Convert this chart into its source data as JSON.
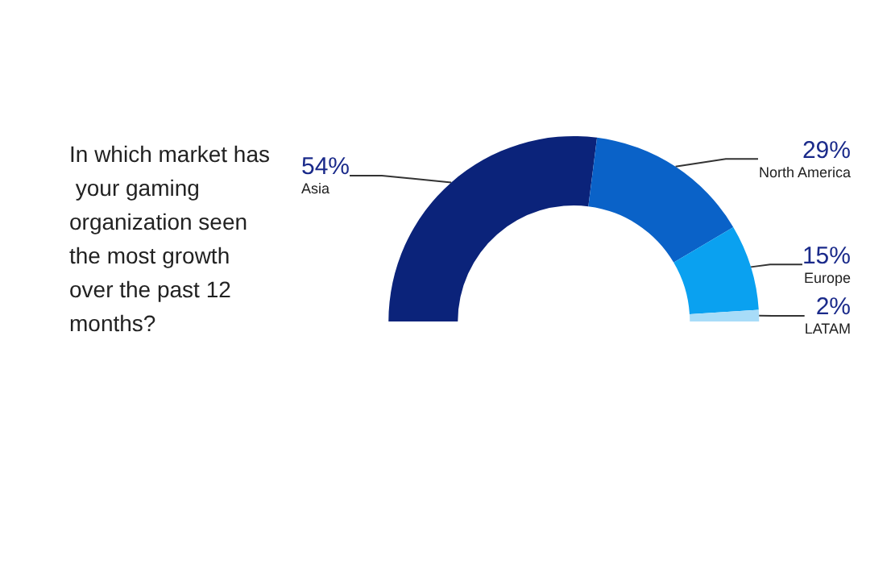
{
  "chart_data": {
    "type": "donut",
    "title": "In which market has your gaming organization seen the most growth over the past 12 months?",
    "categories": [
      "Asia",
      "North America",
      "Europe",
      "LATAM"
    ],
    "values": [
      54,
      29,
      15,
      2
    ],
    "colors": [
      "#0b237a",
      "#0a62c8",
      "#0aa1f0",
      "#a8dcf8"
    ],
    "value_labels": [
      "54%",
      "29%",
      "15%",
      "2%"
    ],
    "legend": false
  }
}
